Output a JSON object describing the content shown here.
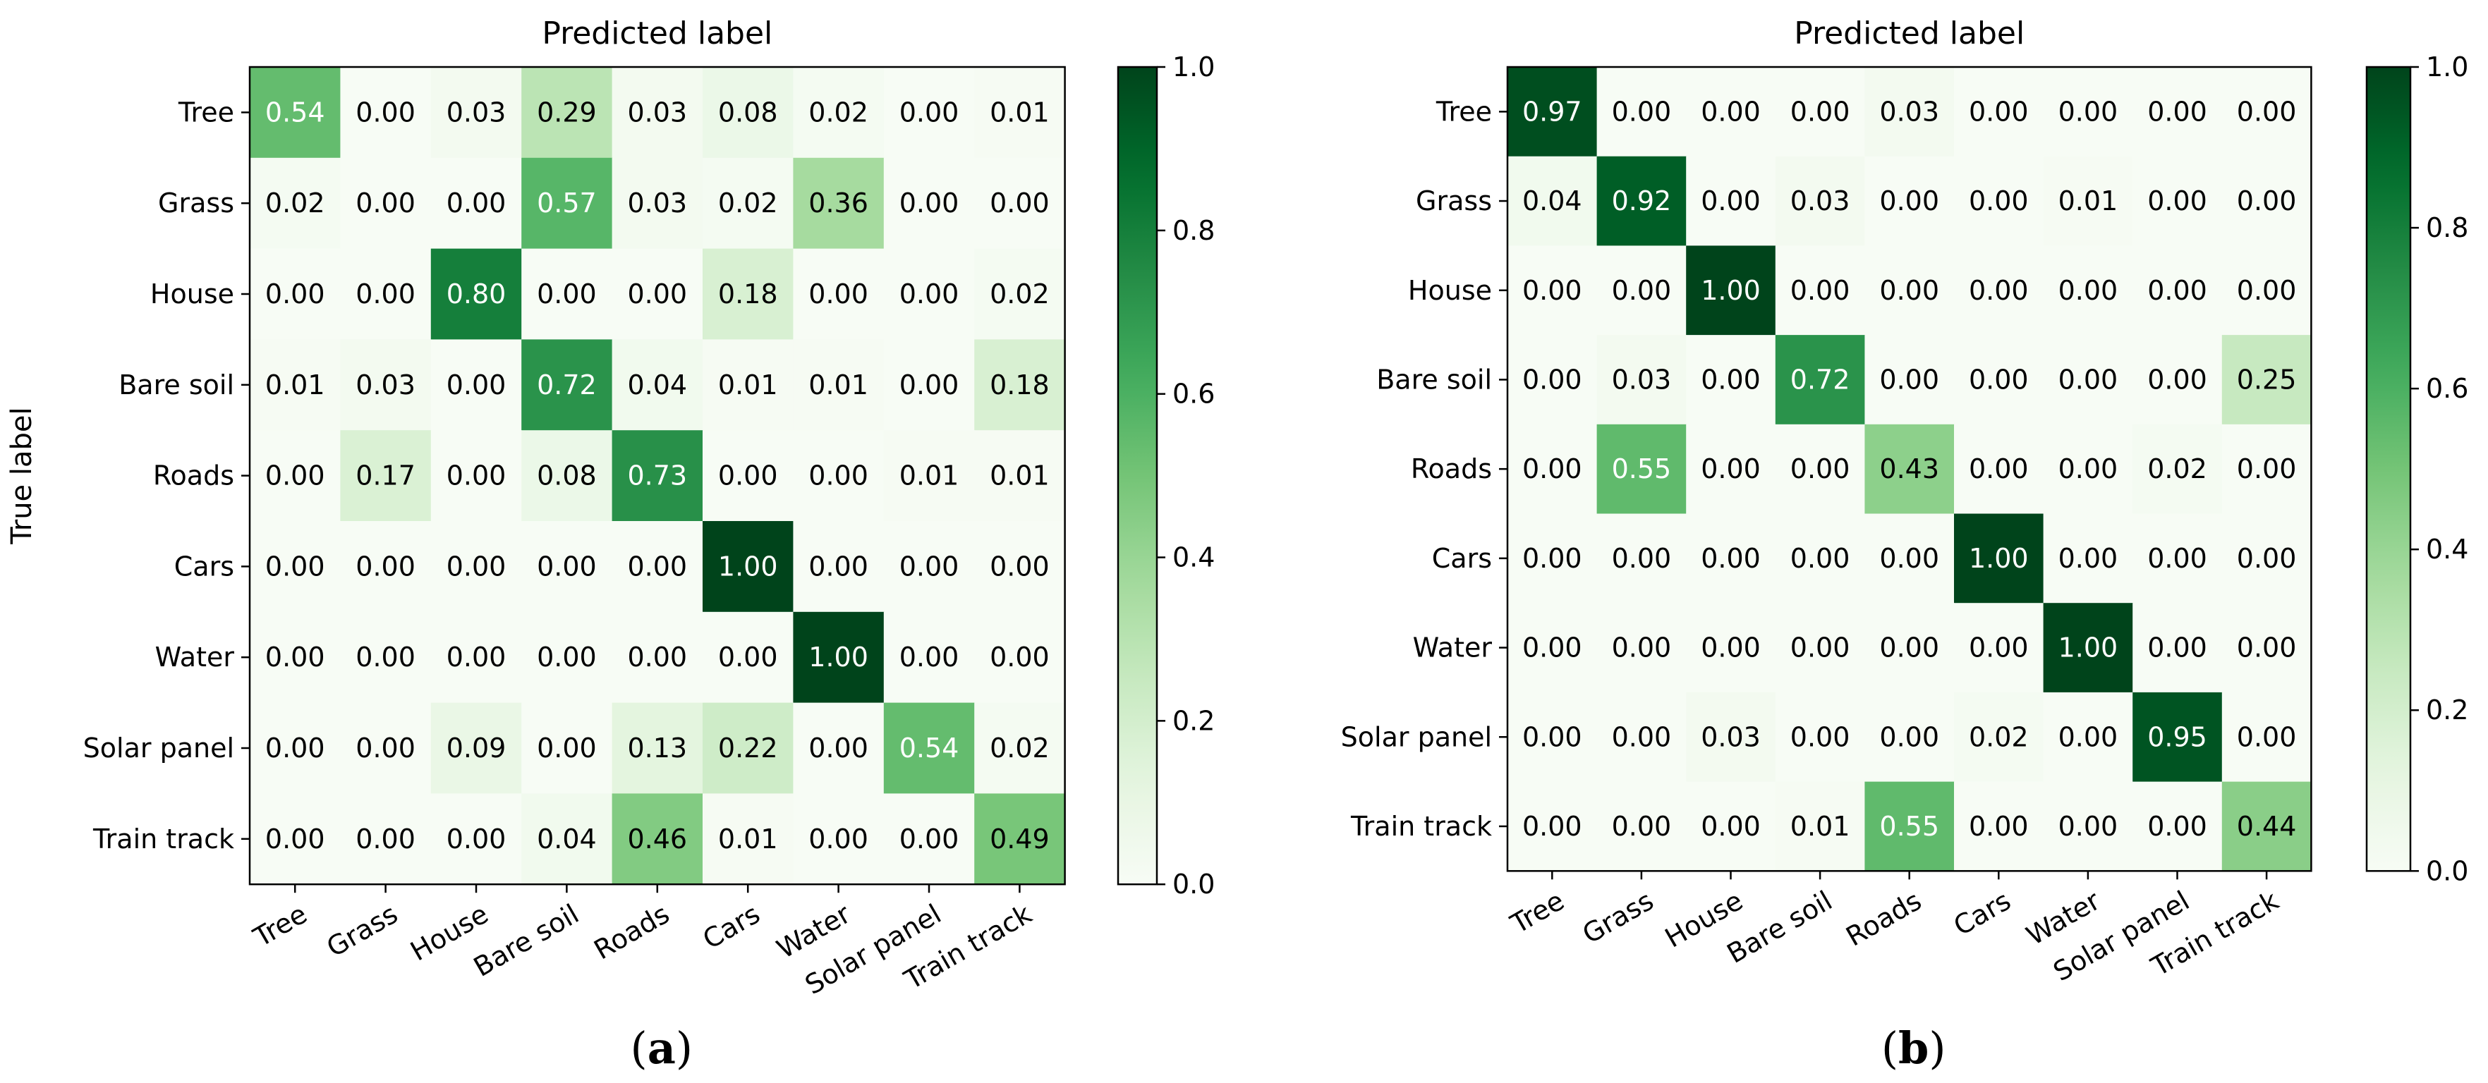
{
  "chart_data": [
    {
      "type": "heatmap",
      "title": "Predicted label",
      "xlabel": "Predicted label",
      "ylabel": "True label",
      "panel_label": "a",
      "classes": [
        "Tree",
        "Grass",
        "House",
        "Bare soil",
        "Roads",
        "Cars",
        "Water",
        "Solar panel",
        "Train track"
      ],
      "values": [
        [
          0.54,
          0.0,
          0.03,
          0.29,
          0.03,
          0.08,
          0.02,
          0.0,
          0.01
        ],
        [
          0.02,
          0.0,
          0.0,
          0.57,
          0.03,
          0.02,
          0.36,
          0.0,
          0.0
        ],
        [
          0.0,
          0.0,
          0.8,
          0.0,
          0.0,
          0.18,
          0.0,
          0.0,
          0.02
        ],
        [
          0.01,
          0.03,
          0.0,
          0.72,
          0.04,
          0.01,
          0.01,
          0.0,
          0.18
        ],
        [
          0.0,
          0.17,
          0.0,
          0.08,
          0.73,
          0.0,
          0.0,
          0.01,
          0.01
        ],
        [
          0.0,
          0.0,
          0.0,
          0.0,
          0.0,
          1.0,
          0.0,
          0.0,
          0.0
        ],
        [
          0.0,
          0.0,
          0.0,
          0.0,
          0.0,
          0.0,
          1.0,
          0.0,
          0.0
        ],
        [
          0.0,
          0.0,
          0.09,
          0.0,
          0.13,
          0.22,
          0.0,
          0.54,
          0.02
        ],
        [
          0.0,
          0.0,
          0.0,
          0.04,
          0.46,
          0.01,
          0.0,
          0.0,
          0.49
        ]
      ],
      "colorbar": {
        "range": [
          0,
          1
        ],
        "ticks": [
          "0.0",
          "0.2",
          "0.4",
          "0.6",
          "0.8",
          "1.0"
        ]
      }
    },
    {
      "type": "heatmap",
      "title": "Predicted label",
      "xlabel": "Predicted label",
      "ylabel": "",
      "panel_label": "b",
      "classes": [
        "Tree",
        "Grass",
        "House",
        "Bare soil",
        "Roads",
        "Cars",
        "Water",
        "Solar panel",
        "Train track"
      ],
      "values": [
        [
          0.97,
          0.0,
          0.0,
          0.0,
          0.03,
          0.0,
          0.0,
          0.0,
          0.0
        ],
        [
          0.04,
          0.92,
          0.0,
          0.03,
          0.0,
          0.0,
          0.01,
          0.0,
          0.0
        ],
        [
          0.0,
          0.0,
          1.0,
          0.0,
          0.0,
          0.0,
          0.0,
          0.0,
          0.0
        ],
        [
          0.0,
          0.03,
          0.0,
          0.72,
          0.0,
          0.0,
          0.0,
          0.0,
          0.25
        ],
        [
          0.0,
          0.55,
          0.0,
          0.0,
          0.43,
          0.0,
          0.0,
          0.02,
          0.0
        ],
        [
          0.0,
          0.0,
          0.0,
          0.0,
          0.0,
          1.0,
          0.0,
          0.0,
          0.0
        ],
        [
          0.0,
          0.0,
          0.0,
          0.0,
          0.0,
          0.0,
          1.0,
          0.0,
          0.0
        ],
        [
          0.0,
          0.0,
          0.03,
          0.0,
          0.0,
          0.02,
          0.0,
          0.95,
          0.0
        ],
        [
          0.0,
          0.0,
          0.0,
          0.01,
          0.55,
          0.0,
          0.0,
          0.0,
          0.44
        ]
      ],
      "colorbar": {
        "range": [
          0,
          1
        ],
        "ticks": [
          "0.0",
          "0.2",
          "0.4",
          "0.6",
          "0.8",
          "1.0"
        ]
      }
    }
  ],
  "colormap": [
    "#f7fcf5",
    "#e5f5e0",
    "#c7e9c0",
    "#a1d99b",
    "#74c476",
    "#41ab5d",
    "#238b45",
    "#006d2c",
    "#00441b"
  ]
}
